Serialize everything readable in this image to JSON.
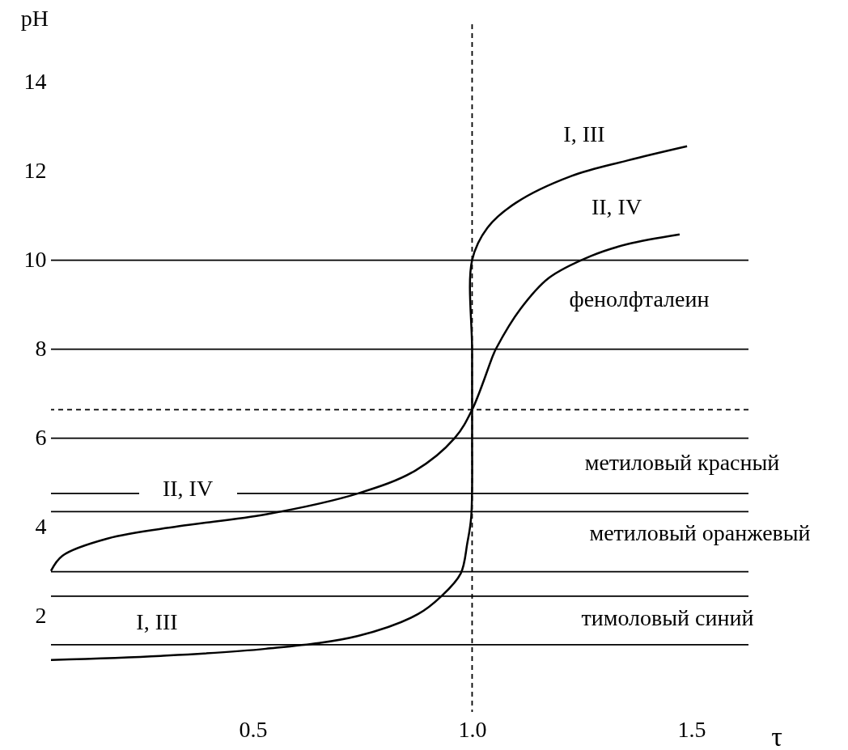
{
  "chart_data": {
    "type": "line",
    "xlabel": "τ",
    "ylabel": "pH",
    "xlim": [
      0.04,
      1.63
    ],
    "ylim": [
      -0.15,
      15.3
    ],
    "xticks": [
      0.5,
      {
        "value": 1.0,
        "label": "1.0"
      },
      1.5
    ],
    "yticks": [
      2,
      4,
      6,
      8,
      10,
      12,
      14
    ],
    "grid": false,
    "marker": "none",
    "line_style": "solid",
    "series": [
      {
        "color": "#000000",
        "x": [
          0.04,
          0.29,
          0.53,
          0.74,
          0.877,
          0.93,
          0.974,
          0.989,
          0.998,
          1.0,
          1.0,
          1.0,
          1.0,
          1.035,
          1.1,
          1.226,
          1.354,
          1.49
        ],
        "values": [
          1.02,
          1.11,
          1.27,
          1.56,
          2.05,
          2.45,
          2.96,
          3.64,
          4.24,
          6.0,
          6.64,
          8.0,
          10.0,
          10.73,
          11.29,
          11.89,
          12.24,
          12.56
        ]
      },
      {
        "color": "#000000",
        "x": [
          0.04,
          0.066,
          0.17,
          0.33,
          0.53,
          0.74,
          0.87,
          0.96,
          1.0,
          1.048,
          1.055,
          1.11,
          1.175,
          1.27,
          1.354,
          1.473
        ],
        "values": [
          3.02,
          3.36,
          3.75,
          4.02,
          4.29,
          4.76,
          5.27,
          6.0,
          6.64,
          7.87,
          8.02,
          8.9,
          9.6,
          10.09,
          10.36,
          10.58
        ]
      }
    ],
    "ref_lines": [
      {
        "axis": "y",
        "value": 10,
        "color": "#000000",
        "line_style": "solid"
      },
      {
        "axis": "y",
        "value": 8,
        "color": "#000000",
        "line_style": "solid"
      },
      {
        "axis": "y",
        "value": 6.64,
        "color": "#000000",
        "line_style": "dashed"
      },
      {
        "axis": "y",
        "value": 6,
        "color": "#000000",
        "line_style": "solid"
      },
      {
        "axis": "y",
        "value": 4.76,
        "color": "#000000",
        "line_style": "solid"
      },
      {
        "axis": "y",
        "value": 4.35,
        "color": "#000000",
        "line_style": "solid"
      },
      {
        "axis": "y",
        "value": 3.0,
        "color": "#000000",
        "line_style": "solid"
      },
      {
        "axis": "y",
        "value": 2.45,
        "color": "#000000",
        "line_style": "solid"
      },
      {
        "axis": "y",
        "value": 1.36,
        "color": "#000000",
        "line_style": "solid"
      },
      {
        "axis": "x",
        "value": 1.0,
        "color": "#000000",
        "line_style": "dashed"
      }
    ],
    "annotations": [
      "I, III",
      "II, IV",
      "фенолфталеин",
      "метиловый красный",
      "метиловый оранжевый",
      "тимоловый синий",
      "II, IV",
      "I, III"
    ]
  }
}
